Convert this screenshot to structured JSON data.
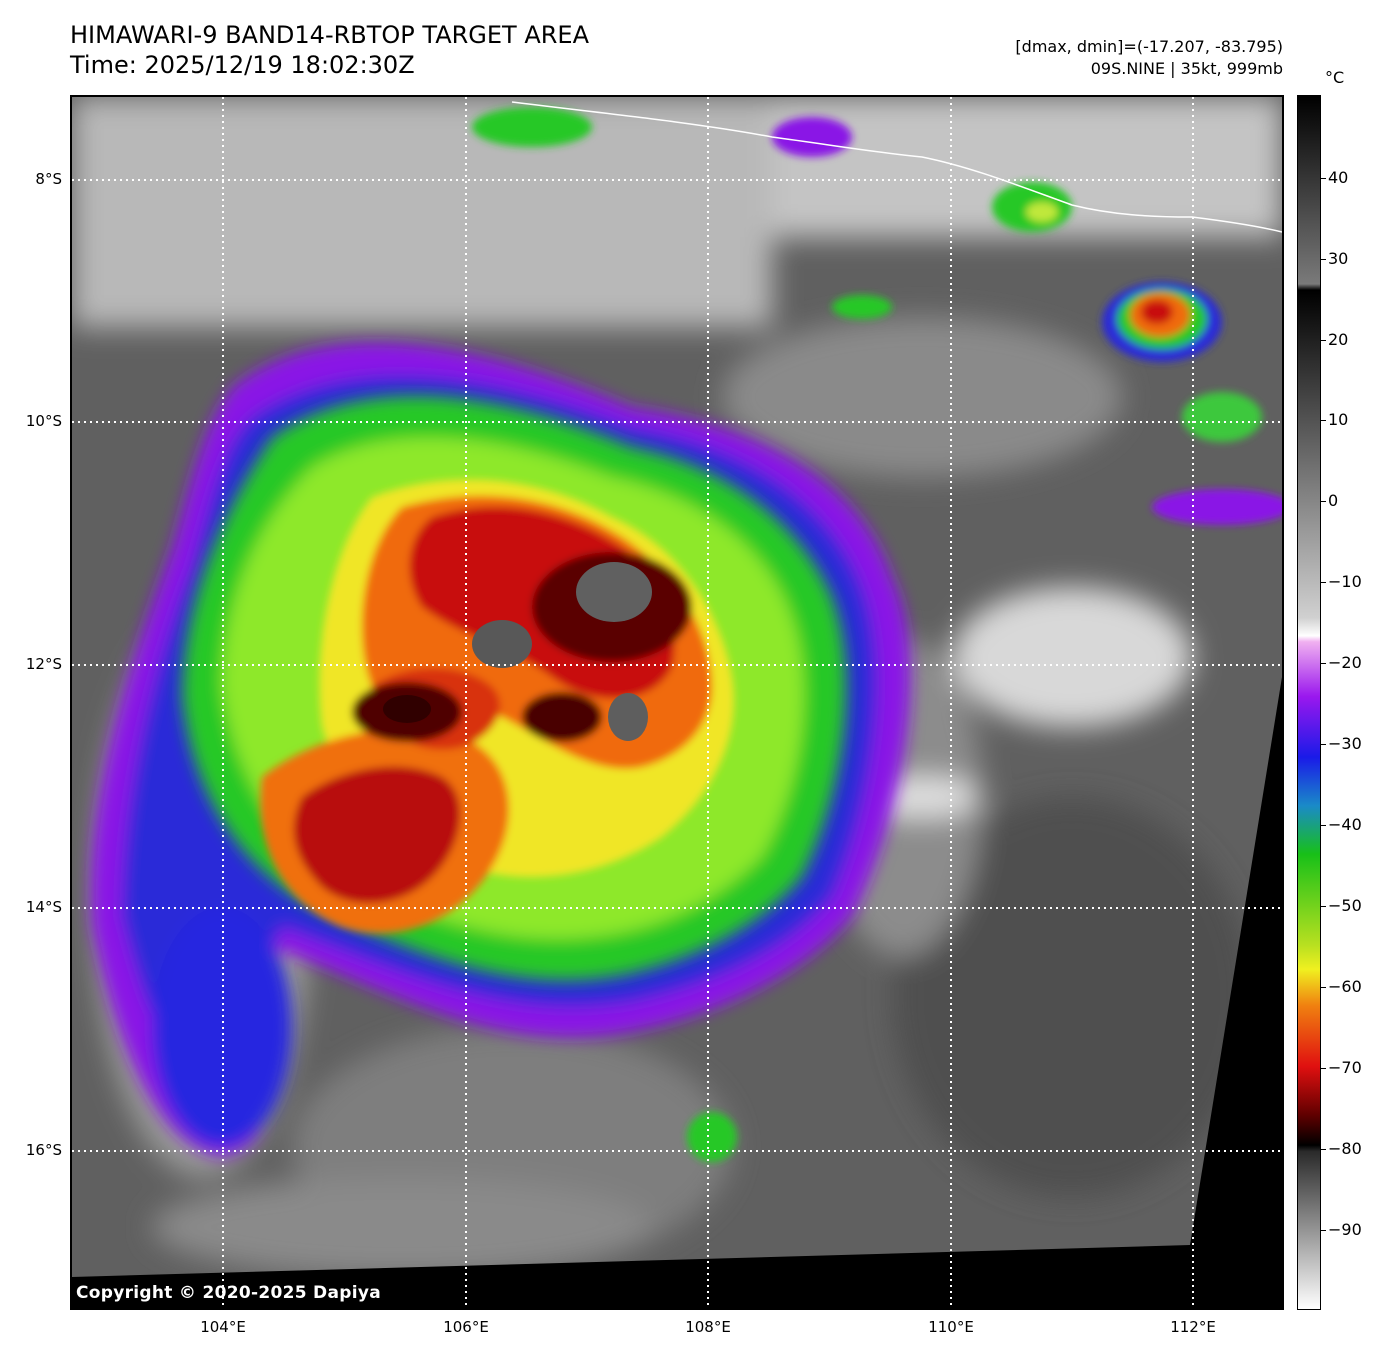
{
  "title_line1": "HIMAWARI-9 BAND14-RBTOP TARGET AREA",
  "title_line2": "Time: 2025/12/19 18:02:30Z",
  "info_line1": "[dmax, dmin]=(-17.207, -83.795)",
  "info_line2": "09S.NINE | 35kt, 999mb",
  "copyright": "Copyright © 2020-2025 Dapiya",
  "map": {
    "lat_range": [
      -17.3,
      -7.3
    ],
    "lon_range": [
      102.75,
      112.75
    ],
    "lat_ticks": [
      {
        "value": -8,
        "label": "8°S"
      },
      {
        "value": -10,
        "label": "10°S"
      },
      {
        "value": -12,
        "label": "12°S"
      },
      {
        "value": -14,
        "label": "14°S"
      },
      {
        "value": -16,
        "label": "16°S"
      }
    ],
    "lon_ticks": [
      {
        "value": 104,
        "label": "104°E"
      },
      {
        "value": 106,
        "label": "106°E"
      },
      {
        "value": 108,
        "label": "108°E"
      },
      {
        "value": 110,
        "label": "110°E"
      },
      {
        "value": 112,
        "label": "112°E"
      }
    ],
    "gridlines": "dotted"
  },
  "colorbar": {
    "unit": "°C",
    "range": [
      -100,
      50
    ],
    "ticks": [
      {
        "value": 40,
        "label": "40"
      },
      {
        "value": 30,
        "label": "30"
      },
      {
        "value": 20,
        "label": "20"
      },
      {
        "value": 10,
        "label": "10"
      },
      {
        "value": 0,
        "label": "0"
      },
      {
        "value": -10,
        "label": "−10"
      },
      {
        "value": -20,
        "label": "−20"
      },
      {
        "value": -30,
        "label": "−30"
      },
      {
        "value": -40,
        "label": "−40"
      },
      {
        "value": -50,
        "label": "−50"
      },
      {
        "value": -60,
        "label": "−60"
      },
      {
        "value": -70,
        "label": "−70"
      },
      {
        "value": -80,
        "label": "−80"
      },
      {
        "value": -90,
        "label": "−90"
      }
    ]
  }
}
